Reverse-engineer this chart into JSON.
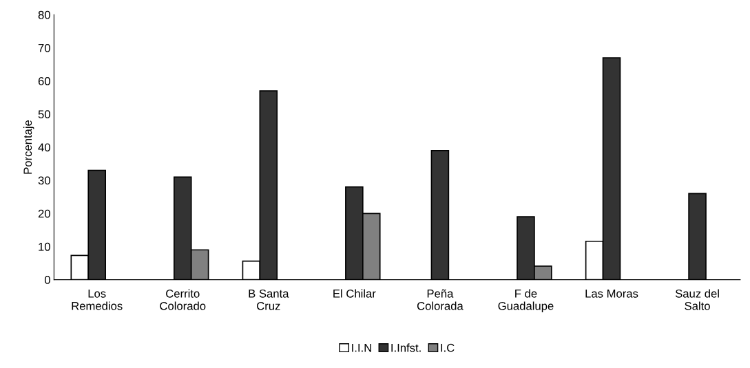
{
  "chart_data": {
    "type": "bar",
    "ylabel": "Porcentaje",
    "categories": [
      "Los\nRemedios",
      "Cerrito\nColorado",
      "B Santa\nCruz",
      "El Chilar",
      "Peña\nColorada",
      "F de\nGuadalupe",
      "Las Moras",
      "Sauz del\nSalto"
    ],
    "series": [
      {
        "name": "I.I.N",
        "color": "#ffffff",
        "values": [
          7.3,
          null,
          5.6,
          null,
          null,
          null,
          11.6,
          null
        ]
      },
      {
        "name": "I.Infst.",
        "color": "#333333",
        "values": [
          33,
          31,
          57,
          28,
          39,
          19,
          67,
          26
        ]
      },
      {
        "name": "I.C",
        "color": "#808080",
        "values": [
          null,
          9,
          null,
          20,
          null,
          4.1,
          null,
          null
        ]
      }
    ],
    "ylim": [
      0,
      80
    ],
    "yticks": [
      0,
      10,
      20,
      30,
      40,
      50,
      60,
      70,
      80
    ],
    "grid": false,
    "legend": "bottom"
  }
}
